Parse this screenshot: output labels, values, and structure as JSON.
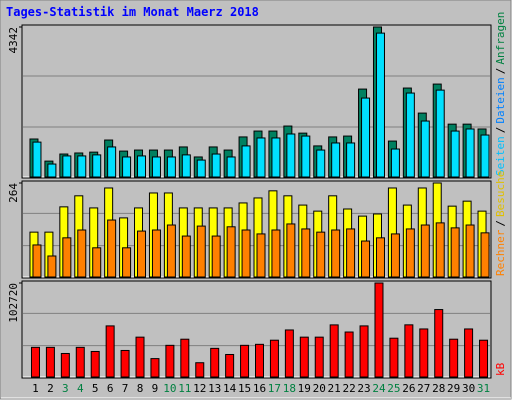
{
  "title": "Tages-Statistik im Monat Maerz 2018",
  "days": {
    "categories": [
      "1",
      "2",
      "3",
      "4",
      "5",
      "6",
      "7",
      "8",
      "9",
      "10",
      "11",
      "12",
      "13",
      "14",
      "15",
      "16",
      "17",
      "18",
      "19",
      "20",
      "21",
      "22",
      "23",
      "24",
      "25",
      "26",
      "27",
      "28",
      "29",
      "30",
      "31"
    ],
    "colors": [
      "#000000",
      "#000000",
      "#008040",
      "#008040",
      "#000000",
      "#000000",
      "#000000",
      "#000000",
      "#000000",
      "#008040",
      "#008040",
      "#000000",
      "#000000",
      "#000000",
      "#000000",
      "#000000",
      "#008040",
      "#008040",
      "#000000",
      "#000000",
      "#000000",
      "#000000",
      "#000000",
      "#008040",
      "#008040",
      "#000000",
      "#000000",
      "#000000",
      "#000000",
      "#000000",
      "#008040"
    ]
  },
  "separator": "/",
  "chart_data": [
    {
      "type": "bar",
      "ylim": [
        0,
        4342
      ],
      "yticks": [
        4342
      ],
      "legend": [
        {
          "name": "Seiten",
          "color": "#00c0ff"
        },
        {
          "name": "Dateien",
          "color": "#0080ff"
        },
        {
          "name": "Anfragen",
          "color": "#008040"
        }
      ],
      "series": [
        {
          "name": "Anfragen",
          "color": "#008060",
          "values": [
            1100,
            460,
            665,
            695,
            720,
            1070,
            750,
            780,
            780,
            780,
            870,
            580,
            870,
            780,
            1160,
            1330,
            1330,
            1475,
            1270,
            900,
            1160,
            1185,
            2545,
            4342,
            1040,
            2575,
            1850,
            2690,
            1530,
            1530,
            1390
          ]
        },
        {
          "name": "Dateien",
          "color": "#00e0ff",
          "values": [
            1010,
            375,
            610,
            610,
            640,
            870,
            580,
            610,
            580,
            580,
            640,
            490,
            665,
            580,
            900,
            1130,
            1130,
            1245,
            1185,
            780,
            985,
            985,
            2285,
            4165,
            810,
            2430,
            1620,
            2515,
            1330,
            1390,
            1215
          ]
        }
      ]
    },
    {
      "type": "bar",
      "ylim": [
        0,
        264
      ],
      "yticks": [
        264
      ],
      "legend": [
        {
          "name": "Rechner",
          "color": "#ff8000"
        },
        {
          "name": "Besuche",
          "color": "#e0c000"
        }
      ],
      "series": [
        {
          "name": "Besuche",
          "color": "#ffff00",
          "values": [
            126,
            126,
            197,
            228,
            194,
            250,
            166,
            194,
            236,
            236,
            194,
            194,
            194,
            194,
            208,
            222,
            242,
            228,
            202,
            185,
            228,
            191,
            171,
            177,
            250,
            202,
            250,
            264,
            199,
            213,
            185
          ]
        },
        {
          "name": "Rechner",
          "color": "#ff8000",
          "values": [
            90,
            59,
            110,
            132,
            82,
            160,
            82,
            129,
            132,
            146,
            115,
            143,
            115,
            141,
            132,
            121,
            132,
            149,
            135,
            126,
            132,
            135,
            101,
            110,
            121,
            135,
            146,
            152,
            138,
            146,
            124
          ]
        }
      ]
    },
    {
      "type": "bar",
      "ylim": [
        0,
        102720
      ],
      "yticks": [
        102720
      ],
      "legend": [
        {
          "name": "kB",
          "color": "#ff0000"
        }
      ],
      "series": [
        {
          "name": "kB",
          "color": "#ff0000",
          "values": [
            32400,
            32400,
            25700,
            32400,
            27900,
            55850,
            29000,
            43550,
            20100,
            34600,
            41300,
            15600,
            31300,
            24600,
            34600,
            35700,
            40200,
            51400,
            43550,
            43550,
            56950,
            49150,
            55850,
            102720,
            42400,
            57000,
            52500,
            73700,
            41300,
            52500,
            40200
          ]
        }
      ]
    }
  ]
}
